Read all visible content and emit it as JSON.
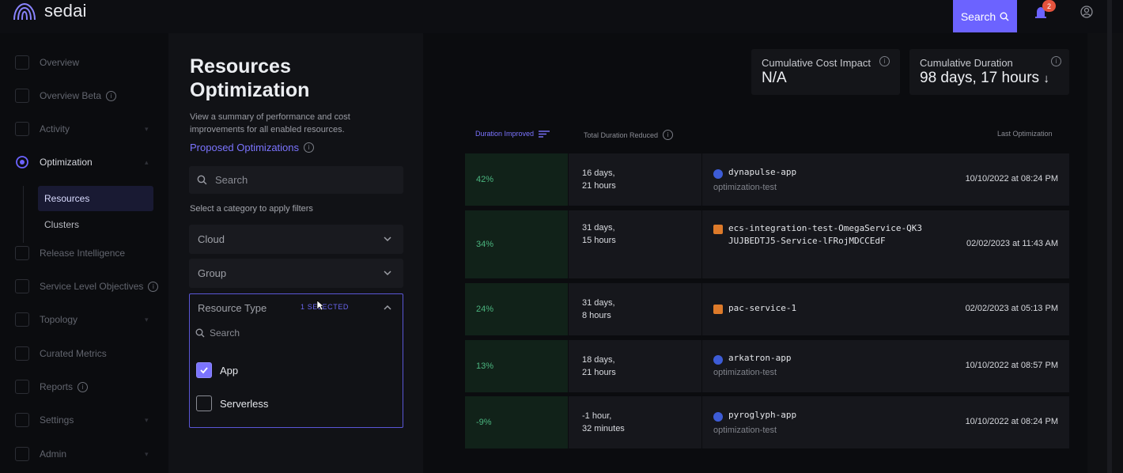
{
  "brand": {
    "name": "sedai"
  },
  "topbar": {
    "search_label": "Search",
    "notification_count": "2"
  },
  "sidebar": {
    "items": [
      {
        "label": "Overview"
      },
      {
        "label": "Overview Beta"
      },
      {
        "label": "Activity"
      },
      {
        "label": "Optimization"
      },
      {
        "label": "Release Intelligence"
      },
      {
        "label": "Service Level Objectives"
      },
      {
        "label": "Topology"
      },
      {
        "label": "Curated Metrics"
      },
      {
        "label": "Reports"
      },
      {
        "label": "Settings"
      },
      {
        "label": "Admin"
      }
    ],
    "sub_items": [
      {
        "label": "Resources"
      },
      {
        "label": "Clusters"
      }
    ]
  },
  "filters": {
    "title": "Resources Optimization",
    "description": "View a summary of performance and cost improvements for all enabled resources.",
    "proposed_link": "Proposed Optimizations",
    "search_placeholder": "Search",
    "hint": "Select a category to apply filters",
    "cloud_label": "Cloud",
    "group_label": "Group",
    "resource_type": {
      "label": "Resource Type",
      "badge": "1 SELECTED",
      "search_placeholder": "Search",
      "options": [
        {
          "label": "App",
          "checked": true
        },
        {
          "label": "Serverless",
          "checked": false
        }
      ]
    }
  },
  "stats": {
    "cost": {
      "label": "Cumulative Cost Impact",
      "value": "N/A"
    },
    "duration": {
      "label": "Cumulative Duration",
      "value": "98 days, 17 hours"
    }
  },
  "table": {
    "columns": {
      "improved": "Duration Improved",
      "reduced": "Total Duration Reduced",
      "last": "Last Optimization"
    },
    "rows": [
      {
        "pct": "42%",
        "dur1": "16 days,",
        "dur2": "21 hours",
        "name": "dynapulse-app",
        "env": "optimization-test",
        "date": "10/10/2022 at 08:24 PM",
        "kind": "app"
      },
      {
        "pct": "34%",
        "dur1": "31 days,",
        "dur2": "15 hours",
        "name": "ecs-integration-test-OmegaService-QK3JUJBEDTJ5-Service-lFRojMDCCEdF",
        "env": "",
        "date": "02/02/2023 at 11:43 AM",
        "kind": "ecs"
      },
      {
        "pct": "24%",
        "dur1": "31 days,",
        "dur2": "8 hours",
        "name": "pac-service-1",
        "env": "",
        "date": "02/02/2023 at 05:13 PM",
        "kind": "ecs"
      },
      {
        "pct": "13%",
        "dur1": "18 days,",
        "dur2": "21 hours",
        "name": "arkatron-app",
        "env": "optimization-test",
        "date": "10/10/2022 at 08:57 PM",
        "kind": "app"
      },
      {
        "pct": "-9%",
        "dur1": "-1 hour,",
        "dur2": "32 minutes",
        "name": "pyroglyph-app",
        "env": "optimization-test",
        "date": "10/10/2022 at 08:24 PM",
        "kind": "app"
      }
    ]
  },
  "colors": {
    "accent": "#6c63ff",
    "positive": "#4bb57f",
    "panel": "#16171c"
  }
}
